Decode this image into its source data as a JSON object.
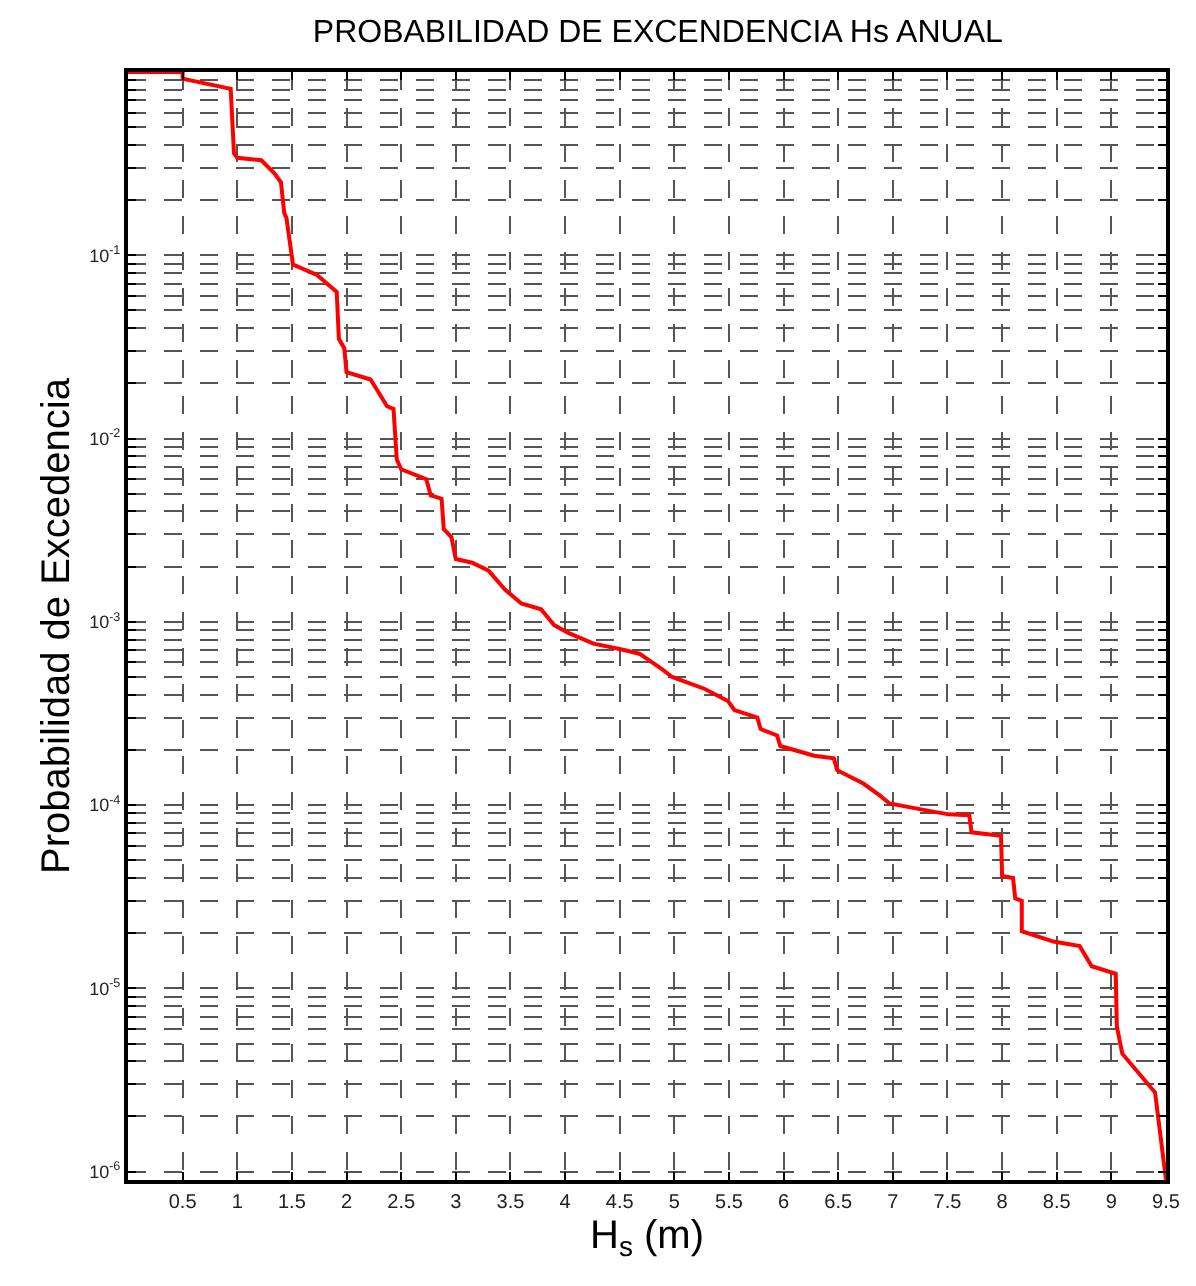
{
  "chart_data": {
    "type": "line",
    "title": "PROBABILIDAD DE EXCENDENCIA Hs ANUAL",
    "xlabel": "H$_{s}$ (m)",
    "ylabel": "Probabilidad de Excedencia",
    "log": "y",
    "grid": true,
    "line_style": "solid",
    "marker": "none",
    "xlim": [
      0,
      9.5
    ],
    "ylim": [
      9e-07,
      1
    ],
    "xticks": [
      0.5,
      1,
      1.5,
      2,
      2.5,
      3,
      3.5,
      4,
      4.5,
      5,
      5.5,
      6,
      6.5,
      7,
      7.5,
      8,
      8.5,
      9,
      9.5
    ],
    "yticks": [
      {
        "value": 1e-06,
        "label": "10$^{-6}$"
      },
      {
        "value": 2e-06,
        "label": null
      },
      {
        "value": 3e-06,
        "label": null
      },
      {
        "value": 4e-06,
        "label": null
      },
      {
        "value": 5e-06,
        "label": null
      },
      {
        "value": 6e-06,
        "label": null
      },
      {
        "value": 7e-06,
        "label": null
      },
      {
        "value": 8e-06,
        "label": null
      },
      {
        "value": 9e-06,
        "label": null
      },
      {
        "value": 1e-05,
        "label": "10$^{-5}$"
      },
      {
        "value": 2e-05,
        "label": null
      },
      {
        "value": 3e-05,
        "label": null
      },
      {
        "value": 4e-05,
        "label": null
      },
      {
        "value": 5e-05,
        "label": null
      },
      {
        "value": 6e-05,
        "label": null
      },
      {
        "value": 7e-05,
        "label": null
      },
      {
        "value": 8e-05,
        "label": null
      },
      {
        "value": 9e-05,
        "label": null
      },
      {
        "value": 0.0001,
        "label": "10$^{-4}$"
      },
      {
        "value": 0.0002,
        "label": null
      },
      {
        "value": 0.0003,
        "label": null
      },
      {
        "value": 0.0004,
        "label": null
      },
      {
        "value": 0.0005,
        "label": null
      },
      {
        "value": 0.0006,
        "label": null
      },
      {
        "value": 0.0007,
        "label": null
      },
      {
        "value": 0.0008,
        "label": null
      },
      {
        "value": 0.0009,
        "label": null
      },
      {
        "value": 0.001,
        "label": "10$^{-3}$"
      },
      {
        "value": 0.002,
        "label": null
      },
      {
        "value": 0.003,
        "label": null
      },
      {
        "value": 0.004,
        "label": null
      },
      {
        "value": 0.005,
        "label": null
      },
      {
        "value": 0.006,
        "label": null
      },
      {
        "value": 0.007,
        "label": null
      },
      {
        "value": 0.008,
        "label": null
      },
      {
        "value": 0.009,
        "label": null
      },
      {
        "value": 0.01,
        "label": "10$^{-2}$"
      },
      {
        "value": 0.02,
        "label": null
      },
      {
        "value": 0.03,
        "label": null
      },
      {
        "value": 0.04,
        "label": null
      },
      {
        "value": 0.05,
        "label": null
      },
      {
        "value": 0.06,
        "label": null
      },
      {
        "value": 0.07,
        "label": null
      },
      {
        "value": 0.08,
        "label": null
      },
      {
        "value": 0.09,
        "label": null
      },
      {
        "value": 0.1,
        "label": "10$^{-1}$"
      },
      {
        "value": 0.2,
        "label": null
      },
      {
        "value": 0.3,
        "label": null
      },
      {
        "value": 0.4,
        "label": null
      },
      {
        "value": 0.5,
        "label": null
      },
      {
        "value": 0.6,
        "label": null
      },
      {
        "value": 0.7,
        "label": null
      },
      {
        "value": 0.8,
        "label": null
      },
      {
        "value": 0.9,
        "label": null
      }
    ],
    "series": [
      {
        "color": "#ff0000",
        "x": [
          0,
          0.5,
          0.5,
          0.94,
          0.97,
          1.0,
          1.22,
          1.34,
          1.4,
          1.43,
          1.45,
          1.51,
          1.73,
          1.91,
          1.93,
          1.98,
          2.0,
          2.22,
          2.29,
          2.37,
          2.43,
          2.46,
          2.5,
          2.73,
          2.77,
          2.87,
          2.89,
          2.96,
          3.0,
          3.15,
          3.3,
          3.45,
          3.6,
          3.78,
          3.9,
          4.03,
          4.26,
          4.5,
          4.68,
          4.89,
          4.98,
          5.28,
          5.49,
          5.55,
          5.76,
          5.79,
          5.94,
          5.97,
          6.28,
          6.46,
          6.49,
          6.73,
          6.88,
          6.97,
          7.33,
          7.51,
          7.7,
          7.72,
          7.99,
          8.0,
          8.1,
          8.12,
          8.18,
          8.18,
          8.47,
          8.71,
          8.82,
          9.04,
          9.05,
          9.1,
          9.4,
          9.5
        ],
        "values": [
          1,
          1,
          0.92,
          0.81,
          0.36,
          0.34,
          0.33,
          0.28,
          0.25,
          0.17,
          0.16,
          0.089,
          0.078,
          0.063,
          0.035,
          0.031,
          0.023,
          0.021,
          0.018,
          0.015,
          0.0145,
          0.0077,
          0.0068,
          0.006,
          0.0049,
          0.0047,
          0.0032,
          0.0029,
          0.0022,
          0.0021,
          0.0019,
          0.0015,
          0.00126,
          0.00117,
          0.00096,
          0.00087,
          0.00076,
          0.00071,
          0.00067,
          0.00055,
          0.0005,
          0.00043,
          0.00037,
          0.00033,
          0.0003,
          0.00026,
          0.00024,
          0.00021,
          0.000186,
          0.00018,
          0.000155,
          0.000131,
          0.000113,
          0.000102,
          9.3e-05,
          8.9e-05,
          8.8e-05,
          7.1e-05,
          6.8e-05,
          4.1e-05,
          4e-05,
          3.1e-05,
          3e-05,
          2.05e-05,
          1.8e-05,
          1.7e-05,
          1.32e-05,
          1.2e-05,
          6.2e-06,
          4.4e-06,
          2.7e-06,
          9e-07
        ]
      }
    ]
  }
}
